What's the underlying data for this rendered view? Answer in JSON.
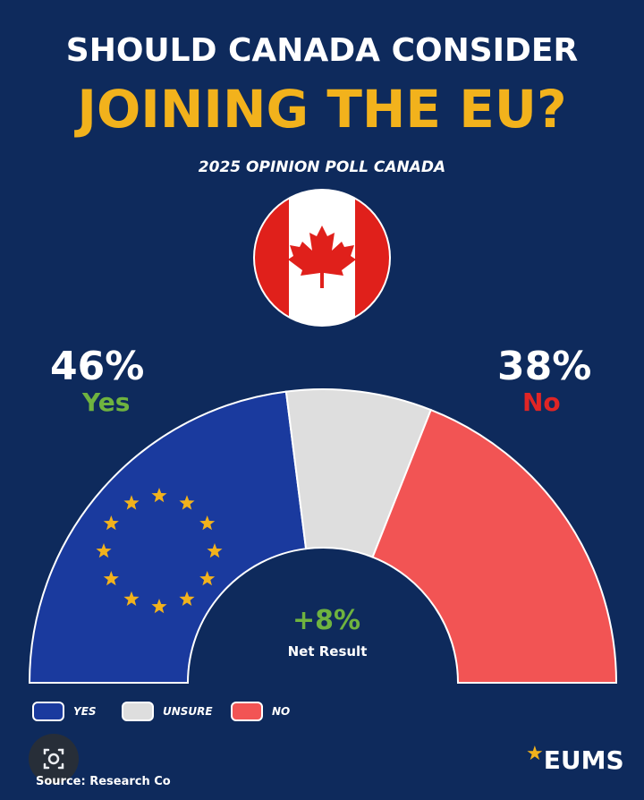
{
  "header": {
    "title_line1": "SHOULD CANADA CONSIDER",
    "title_line2": "JOINING THE EU?",
    "subtitle": "2025 OPINION POLL CANADA"
  },
  "labels": {
    "yes_pct": "46%",
    "yes_word": "Yes",
    "no_pct": "38%",
    "no_word": "No",
    "net_value": "+8%",
    "net_label": "Net Result"
  },
  "legend": [
    {
      "label": "YES",
      "color": "#1a3a9e"
    },
    {
      "label": "UNSURE",
      "color": "#dedede"
    },
    {
      "label": "NO",
      "color": "#f25454"
    }
  ],
  "footer": {
    "source": "Source: Research Co",
    "brand": "EUMS"
  },
  "colors": {
    "background": "#0e2a5c",
    "yes": "#1a3a9e",
    "unsure": "#dedede",
    "no": "#f25454",
    "accent": "#f2b21c",
    "yes_text": "#6fb33f",
    "no_text": "#e02525"
  },
  "icons": {
    "flag": "canada-flag-icon",
    "eu": "eu-stars-icon",
    "lens": "lens-icon"
  },
  "chart_data": {
    "type": "pie",
    "shape": "semicircle-donut",
    "categories": [
      "Yes",
      "Unsure",
      "No"
    ],
    "values": [
      46,
      16,
      38
    ],
    "unit": "%",
    "net_result": 8
  }
}
